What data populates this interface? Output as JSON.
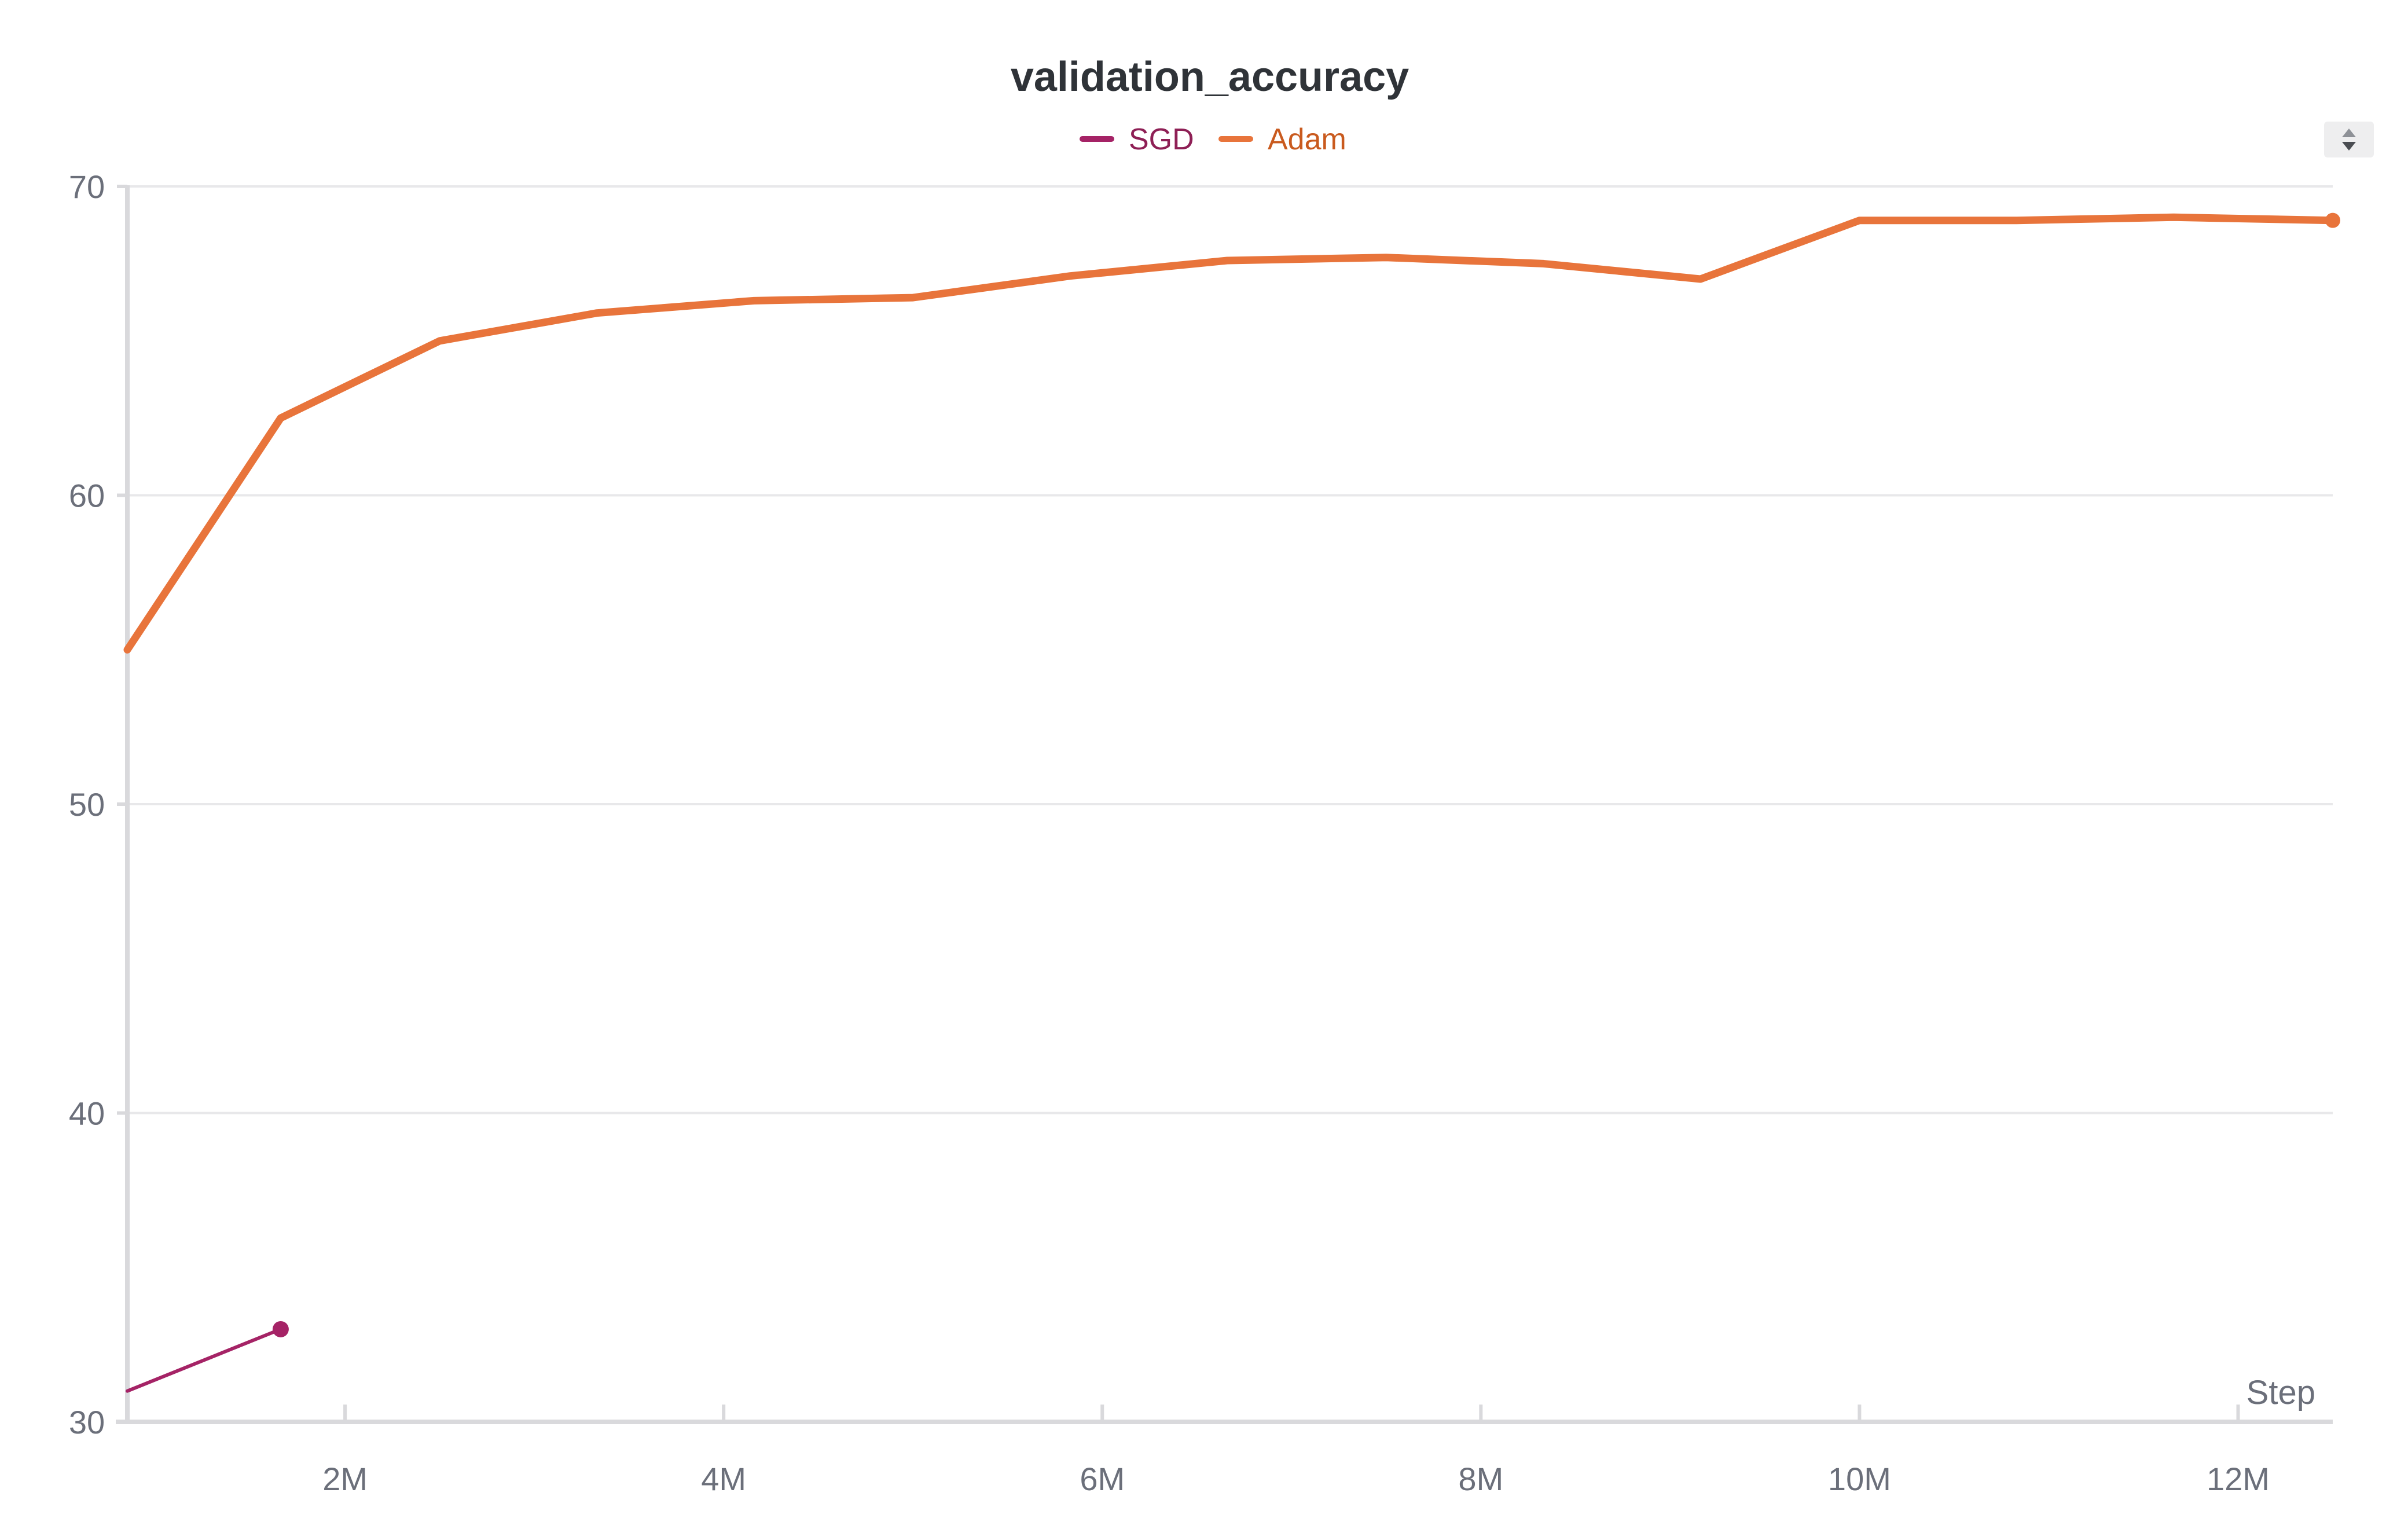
{
  "chart_data": {
    "type": "line",
    "title": "validation_accuracy",
    "xlabel": "Step",
    "ylabel": "",
    "xlim": [
      850000,
      12500000
    ],
    "ylim": [
      30,
      70
    ],
    "xticks": [
      2000000,
      4000000,
      6000000,
      8000000,
      10000000,
      12000000
    ],
    "xtick_labels": [
      "2M",
      "4M",
      "6M",
      "8M",
      "10M",
      "12M"
    ],
    "yticks": [
      30,
      40,
      50,
      60,
      70
    ],
    "ytick_labels": [
      "30",
      "40",
      "50",
      "60",
      "70"
    ],
    "grid": true,
    "legend_position": "top-center",
    "series": [
      {
        "name": "SGD",
        "color": "#a52366",
        "x": [
          850000,
          1660000
        ],
        "y": [
          31.0,
          33.0
        ],
        "end_marker": true
      },
      {
        "name": "Adam",
        "color": "#e8743b",
        "x": [
          850000,
          1660000,
          2500000,
          3330000,
          4160000,
          5000000,
          5830000,
          6660000,
          7500000,
          8330000,
          9160000,
          10000000,
          10830000,
          11660000,
          12500000
        ],
        "y": [
          55.0,
          62.5,
          65.0,
          65.9,
          66.3,
          66.4,
          67.1,
          67.6,
          67.7,
          67.5,
          67.0,
          68.9,
          68.9,
          69.0,
          68.9
        ],
        "end_marker": true
      }
    ]
  },
  "controls": {
    "sort_toggle_icon": "sort-up-down-icon"
  }
}
